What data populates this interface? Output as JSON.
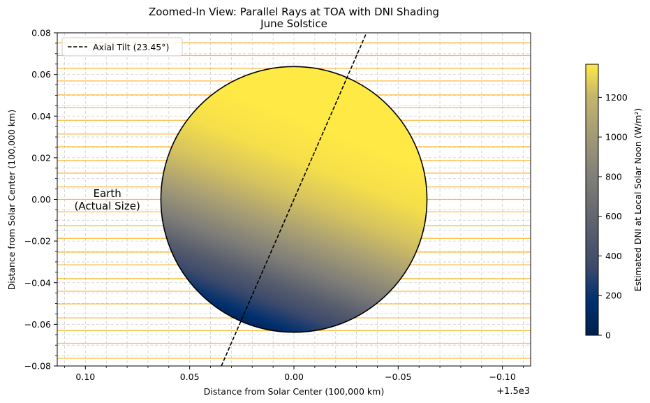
{
  "chart_data": {
    "type": "scatter",
    "title_line1": "Zoomed-In View: Parallel Rays at TOA with DNI Shading",
    "title_line2": "June Solstice",
    "xlabel": "Distance from Solar Center (100,000 km)",
    "ylabel": "Distance from Solar Center (100,000 km)",
    "x_offset_label": "+1.5e3",
    "x_direction": "inverted",
    "xlim": [
      0.1135,
      -0.1135
    ],
    "ylim": [
      -0.08,
      0.08
    ],
    "xticks": [
      {
        "value": 0.1,
        "label": "0.10"
      },
      {
        "value": 0.05,
        "label": "0.05"
      },
      {
        "value": 0.0,
        "label": "0.00"
      },
      {
        "value": -0.05,
        "label": "−0.05"
      },
      {
        "value": -0.1,
        "label": "−0.10"
      }
    ],
    "yticks": [
      {
        "value": 0.08,
        "label": "0.08"
      },
      {
        "value": 0.06,
        "label": "0.06"
      },
      {
        "value": 0.04,
        "label": "0.04"
      },
      {
        "value": 0.02,
        "label": "0.02"
      },
      {
        "value": 0.0,
        "label": "0.00"
      },
      {
        "value": -0.02,
        "label": "−0.02"
      },
      {
        "value": -0.04,
        "label": "−0.04"
      },
      {
        "value": -0.06,
        "label": "−0.06"
      },
      {
        "value": -0.08,
        "label": "−0.08"
      }
    ],
    "grid": "dashed, on (major and minor)",
    "sun_rays": {
      "color": "#ffa500",
      "y_values": [
        -0.0763,
        -0.0691,
        -0.063,
        -0.0569,
        -0.0502,
        -0.0441,
        -0.038,
        -0.0314,
        -0.0253,
        -0.0187,
        -0.0126,
        -0.006,
        0.0,
        0.006,
        0.0126,
        0.0187,
        0.0253,
        0.0314,
        0.038,
        0.0441,
        0.0502,
        0.0569,
        0.063,
        0.0691,
        0.0752
      ]
    },
    "earth": {
      "center": [
        0.0,
        0.0
      ],
      "radius": 0.0638,
      "label_line1": "Earth",
      "label_line2": "(Actual Size)",
      "label_position": [
        0.0895,
        -0.0002
      ]
    },
    "axial_tilt_line": {
      "label": "Axial Tilt (23.45°)",
      "style": "dashed",
      "color": "#000000",
      "points": [
        [
          0.0348,
          -0.08
        ],
        [
          -0.0348,
          0.08
        ]
      ]
    },
    "legend_position": "upper-left",
    "colorbar": {
      "label": "Estimated DNI at Local Solar Noon (W/m²)",
      "colormap": "cividis",
      "range": [
        0,
        1367
      ],
      "ticks": [
        0,
        200,
        400,
        600,
        800,
        1000,
        1200
      ]
    }
  }
}
